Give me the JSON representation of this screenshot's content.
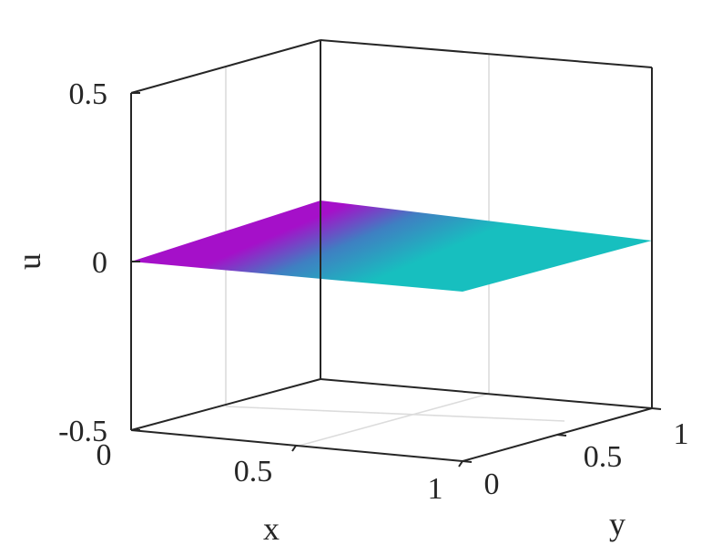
{
  "chart_data": {
    "type": "surface3d",
    "title": "",
    "xlabel": "x",
    "ylabel": "y",
    "zlabel": "u",
    "xlim": [
      0,
      1
    ],
    "ylim": [
      0,
      1
    ],
    "zlim": [
      -0.5,
      0.5
    ],
    "x_ticks": [
      "0",
      "0.5",
      "1"
    ],
    "y_ticks": [
      "0",
      "0.5",
      "1"
    ],
    "z_ticks": [
      "-0.5",
      "0",
      "0.5"
    ],
    "grid": true,
    "surface": {
      "x": [
        0,
        1
      ],
      "y": [
        0,
        1
      ],
      "u": [
        [
          0,
          0
        ],
        [
          0,
          0
        ]
      ],
      "colormap": [
        "#17bfbf",
        "#3f7fc2",
        "#a510c9"
      ]
    }
  }
}
